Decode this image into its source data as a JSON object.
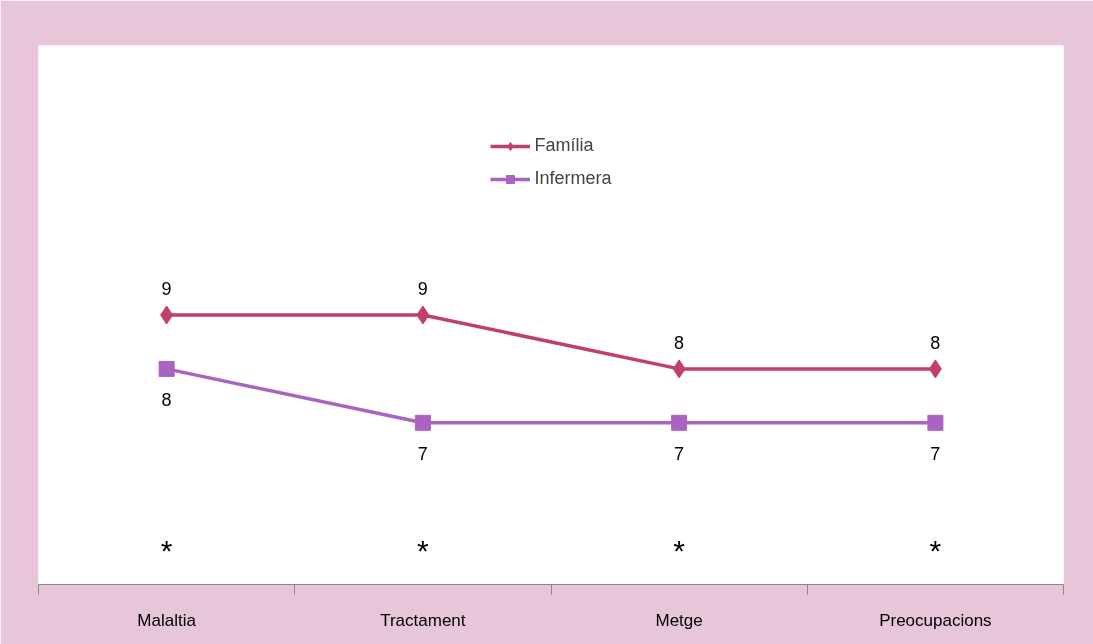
{
  "chart_data": {
    "type": "line",
    "categories": [
      "Malaltia",
      "Tractament",
      "Metge",
      "Preocupacions"
    ],
    "series": [
      {
        "name": "Família",
        "color": "#c0406a",
        "values": [
          9,
          9,
          8,
          8
        ],
        "marker": "diamond"
      },
      {
        "name": "Infermera",
        "color": "#a864c0",
        "values": [
          8,
          7,
          7,
          7
        ],
        "marker": "square"
      }
    ],
    "ylim": [
      4,
      14
    ],
    "tick_labels": "x",
    "data_labels": true,
    "legend": "top",
    "grid": false,
    "annotations": [
      "*",
      "*",
      "*",
      "*"
    ]
  }
}
